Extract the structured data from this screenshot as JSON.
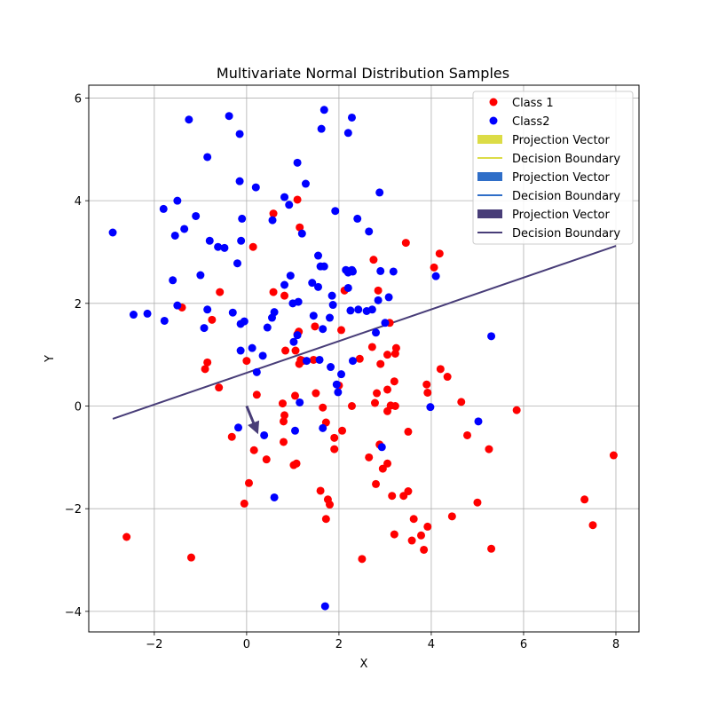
{
  "chart_data": {
    "type": "scatter",
    "title": "Multivariate Normal Distribution Samples",
    "xlabel": "X",
    "ylabel": "Y",
    "xlim": [
      -3.42,
      8.5
    ],
    "ylim": [
      -4.4,
      6.25
    ],
    "xticks": [
      -2,
      0,
      2,
      4,
      6,
      8
    ],
    "yticks": [
      -4,
      -2,
      0,
      2,
      4,
      6
    ],
    "grid": true,
    "legend_position": "top-right",
    "series": [
      {
        "name": "Class 1",
        "kind": "scatter",
        "color": "#ff0000",
        "points": [
          [
            -2.6,
            -2.55
          ],
          [
            -1.2,
            -2.95
          ],
          [
            -1.4,
            1.92
          ],
          [
            -0.9,
            0.72
          ],
          [
            -0.85,
            0.85
          ],
          [
            -0.75,
            1.68
          ],
          [
            -0.6,
            0.36
          ],
          [
            -0.58,
            2.22
          ],
          [
            -0.32,
            -0.6
          ],
          [
            0.0,
            0.88
          ],
          [
            0.05,
            -1.5
          ],
          [
            -0.05,
            -1.9
          ],
          [
            0.14,
            3.1
          ],
          [
            0.16,
            -0.86
          ],
          [
            0.22,
            0.22
          ],
          [
            0.43,
            -1.04
          ],
          [
            0.58,
            2.22
          ],
          [
            0.58,
            3.75
          ],
          [
            0.78,
            0.05
          ],
          [
            0.8,
            -0.3
          ],
          [
            0.82,
            -0.18
          ],
          [
            0.8,
            -0.7
          ],
          [
            0.82,
            2.15
          ],
          [
            0.84,
            1.08
          ],
          [
            1.02,
            -1.15
          ],
          [
            1.05,
            0.2
          ],
          [
            1.06,
            1.08
          ],
          [
            1.08,
            -1.12
          ],
          [
            1.1,
            4.02
          ],
          [
            1.1,
            1.4
          ],
          [
            1.13,
            1.45
          ],
          [
            1.15,
            3.48
          ],
          [
            1.14,
            0.82
          ],
          [
            1.17,
            0.9
          ],
          [
            1.22,
            0.88
          ],
          [
            1.45,
            0.9
          ],
          [
            1.48,
            1.55
          ],
          [
            1.5,
            0.25
          ],
          [
            1.6,
            -1.65
          ],
          [
            1.65,
            -0.03
          ],
          [
            1.72,
            -0.32
          ],
          [
            1.72,
            -2.2
          ],
          [
            1.76,
            -1.82
          ],
          [
            1.8,
            -1.92
          ],
          [
            1.9,
            -0.84
          ],
          [
            1.9,
            -0.62
          ],
          [
            2.0,
            0.4
          ],
          [
            2.05,
            1.48
          ],
          [
            2.07,
            -0.48
          ],
          [
            2.12,
            2.25
          ],
          [
            2.28,
            -0.0
          ],
          [
            2.45,
            0.92
          ],
          [
            2.5,
            -2.98
          ],
          [
            2.65,
            -1.0
          ],
          [
            2.72,
            1.15
          ],
          [
            2.75,
            2.85
          ],
          [
            2.78,
            0.06
          ],
          [
            2.8,
            -1.52
          ],
          [
            2.82,
            0.25
          ],
          [
            2.85,
            2.25
          ],
          [
            2.88,
            -0.75
          ],
          [
            2.9,
            0.82
          ],
          [
            2.95,
            -1.22
          ],
          [
            3.05,
            -1.12
          ],
          [
            3.05,
            0.32
          ],
          [
            3.05,
            1.0
          ],
          [
            3.05,
            -0.1
          ],
          [
            3.1,
            1.62
          ],
          [
            3.12,
            0.01
          ],
          [
            3.15,
            -1.75
          ],
          [
            3.2,
            0.48
          ],
          [
            3.2,
            -2.5
          ],
          [
            3.22,
            1.02
          ],
          [
            3.22,
            0.0
          ],
          [
            3.24,
            1.13
          ],
          [
            3.4,
            -1.75
          ],
          [
            3.45,
            3.18
          ],
          [
            3.5,
            -0.5
          ],
          [
            3.5,
            -1.66
          ],
          [
            3.58,
            -2.62
          ],
          [
            3.62,
            -2.2
          ],
          [
            3.78,
            -2.52
          ],
          [
            3.84,
            -2.8
          ],
          [
            3.9,
            0.42
          ],
          [
            3.92,
            0.26
          ],
          [
            3.92,
            -2.35
          ],
          [
            4.06,
            2.7
          ],
          [
            4.18,
            2.97
          ],
          [
            4.2,
            0.72
          ],
          [
            4.35,
            0.57
          ],
          [
            4.45,
            -2.15
          ],
          [
            4.65,
            0.08
          ],
          [
            4.78,
            -0.57
          ],
          [
            5.0,
            -1.88
          ],
          [
            5.25,
            -0.84
          ],
          [
            5.3,
            -2.78
          ],
          [
            5.85,
            -0.08
          ],
          [
            7.32,
            -1.82
          ],
          [
            7.5,
            -2.32
          ],
          [
            7.95,
            -0.96
          ]
        ]
      },
      {
        "name": "Class2",
        "kind": "scatter",
        "color": "#0000ff",
        "points": [
          [
            -2.9,
            3.38
          ],
          [
            -2.45,
            1.78
          ],
          [
            -2.15,
            1.8
          ],
          [
            -1.8,
            3.84
          ],
          [
            -1.78,
            1.66
          ],
          [
            -1.6,
            2.45
          ],
          [
            -1.55,
            3.32
          ],
          [
            -1.5,
            4.0
          ],
          [
            -1.5,
            1.96
          ],
          [
            -1.35,
            3.45
          ],
          [
            -1.25,
            5.58
          ],
          [
            -1.1,
            3.7
          ],
          [
            -1.0,
            2.55
          ],
          [
            -0.92,
            1.52
          ],
          [
            -0.85,
            4.85
          ],
          [
            -0.85,
            1.88
          ],
          [
            -0.8,
            3.22
          ],
          [
            -0.62,
            3.1
          ],
          [
            -0.48,
            3.08
          ],
          [
            -0.38,
            5.65
          ],
          [
            -0.3,
            1.82
          ],
          [
            -0.2,
            2.78
          ],
          [
            -0.18,
            -0.42
          ],
          [
            -0.15,
            4.38
          ],
          [
            -0.15,
            5.3
          ],
          [
            -0.13,
            1.6
          ],
          [
            -0.13,
            1.08
          ],
          [
            -0.12,
            3.22
          ],
          [
            -0.1,
            3.65
          ],
          [
            -0.05,
            1.65
          ],
          [
            0.12,
            1.13
          ],
          [
            0.2,
            4.26
          ],
          [
            0.22,
            0.66
          ],
          [
            0.35,
            0.98
          ],
          [
            0.38,
            -0.57
          ],
          [
            0.45,
            1.53
          ],
          [
            0.55,
            1.72
          ],
          [
            0.56,
            3.62
          ],
          [
            0.6,
            1.83
          ],
          [
            0.6,
            -1.78
          ],
          [
            0.82,
            2.36
          ],
          [
            0.82,
            4.07
          ],
          [
            0.92,
            3.92
          ],
          [
            0.95,
            2.54
          ],
          [
            1.0,
            2.0
          ],
          [
            1.02,
            1.25
          ],
          [
            1.05,
            -0.48
          ],
          [
            1.1,
            4.74
          ],
          [
            1.1,
            1.38
          ],
          [
            1.12,
            2.03
          ],
          [
            1.15,
            0.07
          ],
          [
            1.2,
            3.36
          ],
          [
            1.28,
            4.33
          ],
          [
            1.3,
            0.88
          ],
          [
            1.42,
            2.4
          ],
          [
            1.45,
            1.76
          ],
          [
            1.55,
            2.93
          ],
          [
            1.55,
            2.32
          ],
          [
            1.58,
            0.9
          ],
          [
            1.6,
            2.72
          ],
          [
            1.62,
            5.4
          ],
          [
            1.65,
            -0.43
          ],
          [
            1.65,
            1.5
          ],
          [
            1.68,
            5.77
          ],
          [
            1.68,
            2.72
          ],
          [
            1.7,
            -3.9
          ],
          [
            1.8,
            1.72
          ],
          [
            1.82,
            0.76
          ],
          [
            1.85,
            2.15
          ],
          [
            1.87,
            1.97
          ],
          [
            1.92,
            3.8
          ],
          [
            1.95,
            0.42
          ],
          [
            1.98,
            0.27
          ],
          [
            2.05,
            0.62
          ],
          [
            2.15,
            2.65
          ],
          [
            2.2,
            5.32
          ],
          [
            2.2,
            2.6
          ],
          [
            2.2,
            2.3
          ],
          [
            2.25,
            1.86
          ],
          [
            2.28,
            5.62
          ],
          [
            2.28,
            2.65
          ],
          [
            2.3,
            2.62
          ],
          [
            2.3,
            0.88
          ],
          [
            2.4,
            3.65
          ],
          [
            2.42,
            1.88
          ],
          [
            2.6,
            1.85
          ],
          [
            2.65,
            3.4
          ],
          [
            2.72,
            1.88
          ],
          [
            2.8,
            1.43
          ],
          [
            2.85,
            2.06
          ],
          [
            2.88,
            4.16
          ],
          [
            2.9,
            2.63
          ],
          [
            2.93,
            -0.8
          ],
          [
            3.0,
            1.62
          ],
          [
            3.08,
            2.12
          ],
          [
            3.18,
            2.62
          ],
          [
            3.98,
            -0.02
          ],
          [
            4.1,
            2.53
          ],
          [
            5.02,
            -0.3
          ],
          [
            5.3,
            1.36
          ]
        ]
      },
      {
        "name": "Projection Vector",
        "kind": "arrow",
        "color": "#483d78",
        "start": [
          0.0,
          0.0
        ],
        "end": [
          0.25,
          -0.55
        ]
      },
      {
        "name": "Decision Boundary",
        "kind": "line",
        "color": "#483d78",
        "x": [
          -2.9,
          8.0
        ],
        "y": [
          -0.25,
          3.12
        ]
      }
    ],
    "legend": [
      {
        "label": "Class 1",
        "marker": "dot",
        "color": "#ff0000"
      },
      {
        "label": "Class2",
        "marker": "dot",
        "color": "#0000ff"
      },
      {
        "label": "Projection Vector",
        "marker": "patch",
        "color": "#dcdc46"
      },
      {
        "label": "Decision Boundary",
        "marker": "line",
        "color": "#dcdc46"
      },
      {
        "label": "Projection Vector",
        "marker": "patch",
        "color": "#2f6ec8"
      },
      {
        "label": "Decision Boundary",
        "marker": "line",
        "color": "#2f6ec8"
      },
      {
        "label": "Projection Vector",
        "marker": "patch",
        "color": "#483d78"
      },
      {
        "label": "Decision Boundary",
        "marker": "line",
        "color": "#483d78"
      }
    ]
  }
}
